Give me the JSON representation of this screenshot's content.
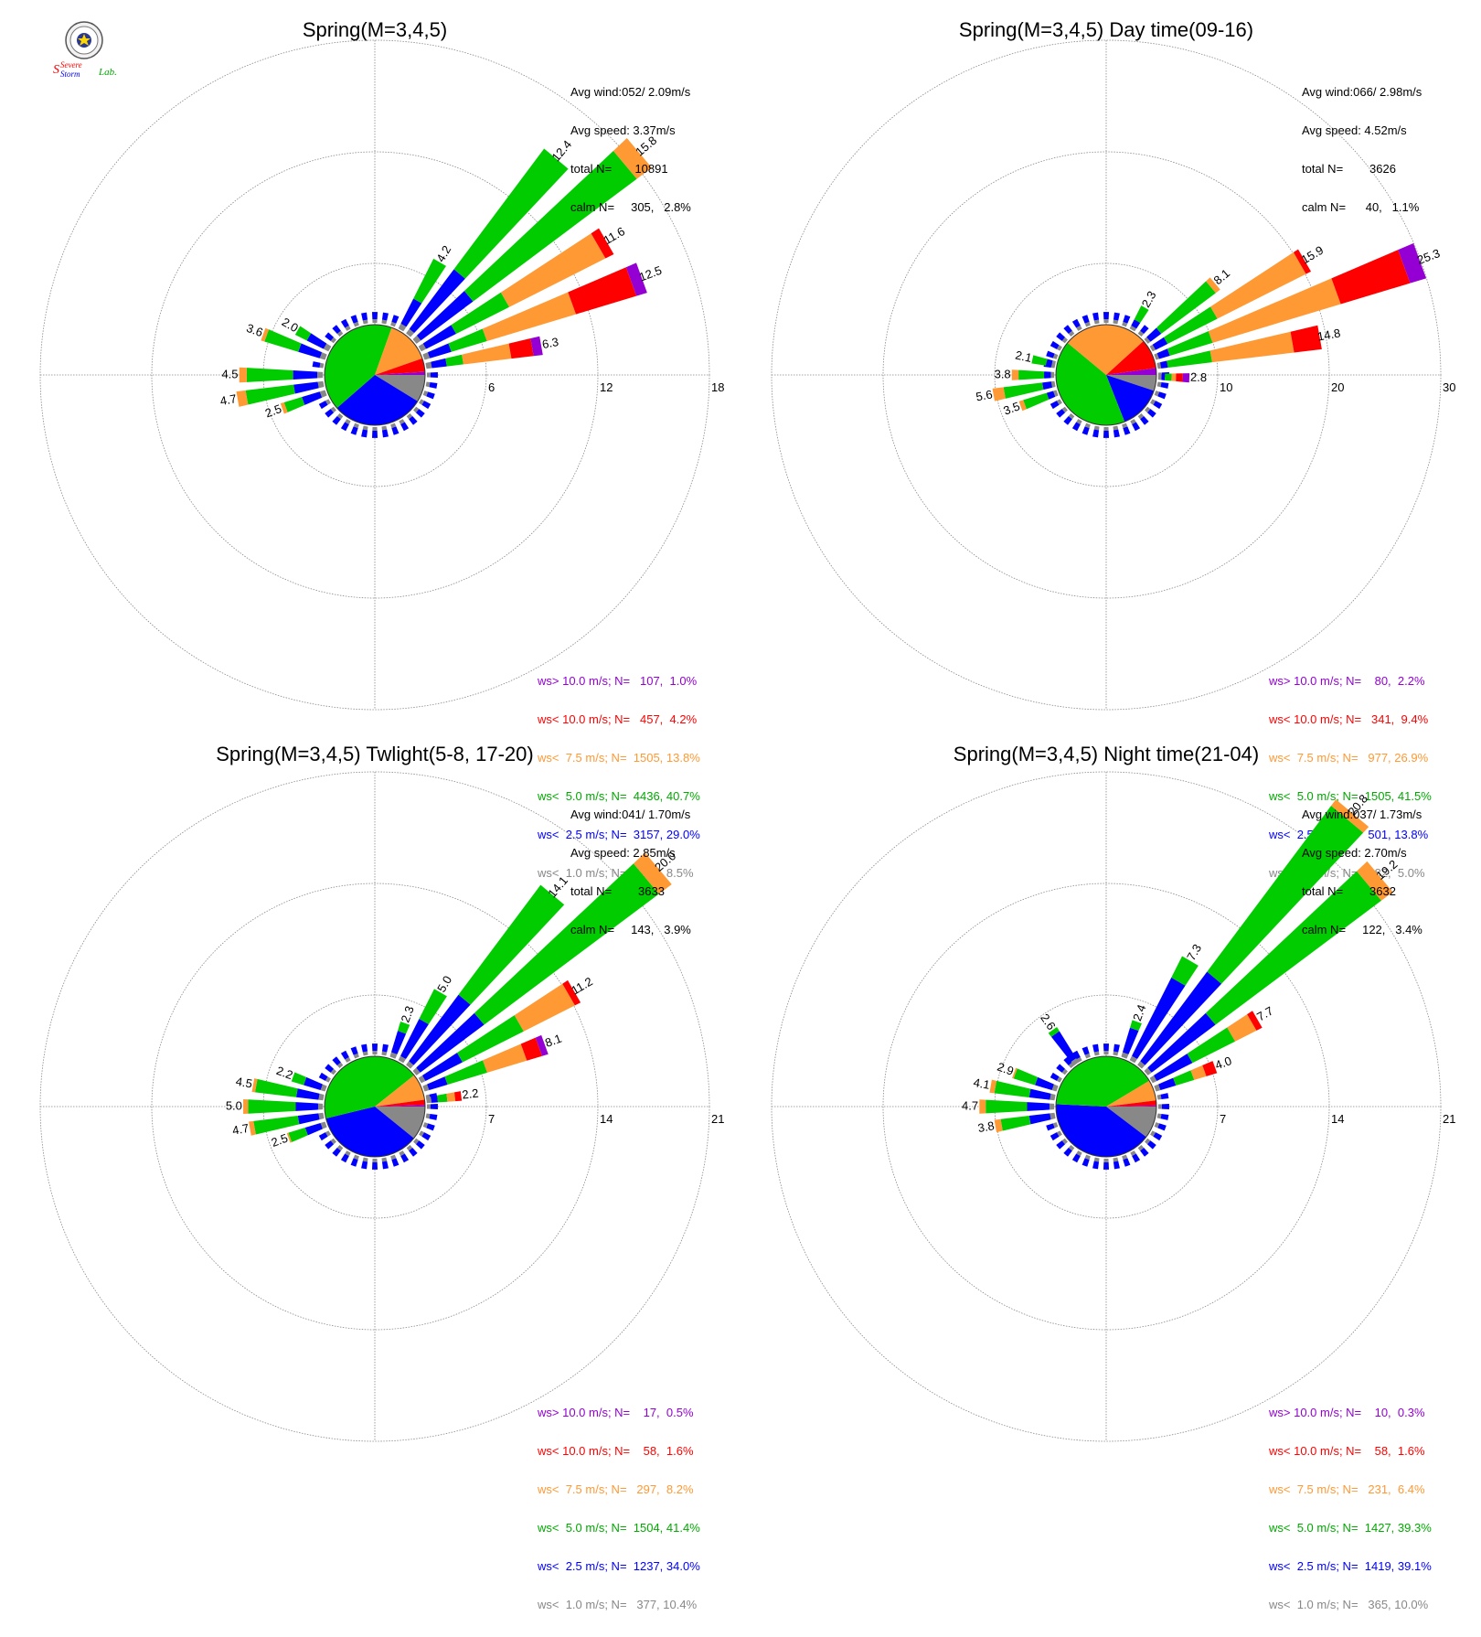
{
  "logo": {
    "text_a": "Severe",
    "text_b": "Storm",
    "text_c": "Lab."
  },
  "colors": {
    "gt10": "#9400d3",
    "lt10": "#ff0000",
    "lt7_5": "#ff9933",
    "lt5": "#00cc00",
    "lt2_5": "#0000ff",
    "lt1": "#888888"
  },
  "chart_data": [
    {
      "type": "windrose",
      "title": "Spring(M=3,4,5)",
      "rings": [
        6,
        12,
        18
      ],
      "stats": [
        "Avg wind:052/ 2.09m/s",
        "Avg speed: 3.37m/s",
        "total N=       10891",
        "calm N=     305,   2.8%"
      ],
      "legend": [
        {
          "label": "ws> 10.0 m/s; N=   107,  1.0%",
          "color": "gt10"
        },
        {
          "label": "ws< 10.0 m/s; N=   457,  4.2%",
          "color": "lt10"
        },
        {
          "label": "ws<  7.5 m/s; N=  1505, 13.8%",
          "color": "lt7_5"
        },
        {
          "label": "ws<  5.0 m/s; N=  4436, 40.7%",
          "color": "lt5"
        },
        {
          "label": "ws<  2.5 m/s; N=  3157, 29.0%",
          "color": "lt2_5"
        },
        {
          "label": "ws<  1.0 m/s; N=   924,  8.5%",
          "color": "lt1"
        }
      ],
      "pie": [
        8.5,
        29.0,
        40.7,
        13.8,
        4.2,
        1.0
      ],
      "bars": [
        {
          "dir": 30,
          "total": 4.2,
          "label": "4.2",
          "parts": [
            0.3,
            1.5,
            2.4,
            0,
            0,
            0
          ]
        },
        {
          "dir": 40,
          "total": 12.4,
          "label": "12.4",
          "parts": [
            0.3,
            4.0,
            8.1,
            0,
            0,
            0
          ]
        },
        {
          "dir": 50,
          "total": 15.8,
          "label": "15.8",
          "parts": [
            0.3,
            3.5,
            11.0,
            1.0,
            0,
            0
          ]
        },
        {
          "dir": 60,
          "total": 11.6,
          "label": "11.6",
          "parts": [
            0.3,
            1.8,
            3.2,
            5.8,
            0.5,
            0
          ]
        },
        {
          "dir": 70,
          "total": 12.5,
          "label": "12.5",
          "parts": [
            0.3,
            1.2,
            2.0,
            5.0,
            3.4,
            0.6
          ]
        },
        {
          "dir": 80,
          "total": 6.3,
          "label": "6.3",
          "parts": [
            0.3,
            0.8,
            0.9,
            2.6,
            1.2,
            0.5
          ]
        },
        {
          "dir": 250,
          "total": 2.5,
          "label": "2.5",
          "parts": [
            0.3,
            1.0,
            1.0,
            0.2,
            0,
            0
          ]
        },
        {
          "dir": 260,
          "total": 4.7,
          "label": "4.7",
          "parts": [
            0.3,
            1.3,
            2.6,
            0.5,
            0,
            0
          ]
        },
        {
          "dir": 270,
          "total": 4.5,
          "label": "4.5",
          "parts": [
            0.3,
            1.3,
            2.5,
            0.4,
            0,
            0
          ]
        },
        {
          "dir": 290,
          "total": 3.6,
          "label": "3.6",
          "parts": [
            0.3,
            1.2,
            1.9,
            0.2,
            0,
            0
          ]
        },
        {
          "dir": 300,
          "total": 2.0,
          "label": "2.0",
          "parts": [
            0.3,
            1.0,
            0.7,
            0,
            0,
            0
          ]
        }
      ]
    },
    {
      "type": "windrose",
      "title": "Spring(M=3,4,5) Day time(09-16)",
      "rings": [
        10,
        20,
        30
      ],
      "stats": [
        "Avg wind:066/ 2.98m/s",
        "Avg speed: 4.52m/s",
        "total N=        3626",
        "calm N=      40,   1.1%"
      ],
      "legend": [
        {
          "label": "ws> 10.0 m/s; N=    80,  2.2%",
          "color": "gt10"
        },
        {
          "label": "ws< 10.0 m/s; N=   341,  9.4%",
          "color": "lt10"
        },
        {
          "label": "ws<  7.5 m/s; N=   977, 26.9%",
          "color": "lt7_5"
        },
        {
          "label": "ws<  5.0 m/s; N=  1505, 41.5%",
          "color": "lt5"
        },
        {
          "label": "ws<  2.5 m/s; N=   501, 13.8%",
          "color": "lt2_5"
        },
        {
          "label": "ws<  1.0 m/s; N=   182,  5.0%",
          "color": "lt1"
        }
      ],
      "pie": [
        5.0,
        13.8,
        41.5,
        26.9,
        9.4,
        2.2
      ],
      "bars": [
        {
          "dir": 30,
          "total": 2.3,
          "label": "2.3",
          "parts": [
            0.3,
            0.6,
            1.4,
            0,
            0,
            0
          ]
        },
        {
          "dir": 50,
          "total": 8.1,
          "label": "8.1",
          "parts": [
            0.3,
            1.2,
            6.1,
            0.5,
            0,
            0
          ]
        },
        {
          "dir": 60,
          "total": 15.9,
          "label": "15.9",
          "parts": [
            0.3,
            1.2,
            5.0,
            8.9,
            0.5,
            0
          ]
        },
        {
          "dir": 70,
          "total": 25.3,
          "label": "25.3",
          "parts": [
            0.3,
            1.0,
            4.0,
            12.0,
            6.5,
            1.5
          ]
        },
        {
          "dir": 80,
          "total": 14.8,
          "label": "14.8",
          "parts": [
            0.3,
            0.6,
            4.0,
            7.4,
            2.5,
            0
          ]
        },
        {
          "dir": 92,
          "total": 2.8,
          "label": "2.8",
          "parts": [
            0.3,
            0.3,
            0.6,
            0.4,
            0.6,
            0.6
          ]
        },
        {
          "dir": 250,
          "total": 3.5,
          "label": "3.5",
          "parts": [
            0.3,
            0.6,
            2.2,
            0.4,
            0,
            0
          ]
        },
        {
          "dir": 260,
          "total": 5.6,
          "label": "5.6",
          "parts": [
            0.3,
            0.8,
            3.5,
            1.0,
            0,
            0
          ]
        },
        {
          "dir": 270,
          "total": 3.8,
          "label": "3.8",
          "parts": [
            0.3,
            0.6,
            2.3,
            0.6,
            0,
            0
          ]
        },
        {
          "dir": 282,
          "total": 2.1,
          "label": "2.1",
          "parts": [
            0.3,
            0.5,
            1.3,
            0,
            0,
            0
          ]
        }
      ]
    },
    {
      "type": "windrose",
      "title": "Spring(M=3,4,5) Twlight(5-8, 17-20)",
      "rings": [
        7,
        14,
        21
      ],
      "stats": [
        "Avg wind:041/ 1.70m/s",
        "Avg speed: 2.85m/s",
        "total N=        3633",
        "calm N=     143,   3.9%"
      ],
      "legend": [
        {
          "label": "ws> 10.0 m/s; N=    17,  0.5%",
          "color": "gt10"
        },
        {
          "label": "ws< 10.0 m/s; N=    58,  1.6%",
          "color": "lt10"
        },
        {
          "label": "ws<  7.5 m/s; N=   297,  8.2%",
          "color": "lt7_5"
        },
        {
          "label": "ws<  5.0 m/s; N=  1504, 41.4%",
          "color": "lt5"
        },
        {
          "label": "ws<  2.5 m/s; N=  1237, 34.0%",
          "color": "lt2_5"
        },
        {
          "label": "ws<  1.0 m/s; N=   377, 10.4%",
          "color": "lt1"
        }
      ],
      "pie": [
        10.4,
        34.0,
        41.4,
        8.2,
        1.6,
        0.5
      ],
      "bars": [
        {
          "dir": 20,
          "total": 2.3,
          "label": "2.3",
          "parts": [
            0.3,
            1.4,
            0.6,
            0,
            0,
            0
          ]
        },
        {
          "dir": 30,
          "total": 5.0,
          "label": "5.0",
          "parts": [
            0.3,
            2.6,
            2.1,
            0,
            0,
            0
          ]
        },
        {
          "dir": 40,
          "total": 14.1,
          "label": "14.1",
          "parts": [
            0.3,
            5.2,
            8.6,
            0,
            0,
            0
          ]
        },
        {
          "dir": 50,
          "total": 20.0,
          "label": "20.0",
          "parts": [
            0.3,
            5.0,
            13.7,
            1.0,
            0,
            0
          ]
        },
        {
          "dir": 60,
          "total": 11.2,
          "label": "11.2",
          "parts": [
            0.3,
            2.6,
            4.3,
            3.6,
            0.4,
            0
          ]
        },
        {
          "dir": 70,
          "total": 8.1,
          "label": "8.1",
          "parts": [
            0.3,
            1.2,
            2.6,
            2.6,
            1.0,
            0.4
          ]
        },
        {
          "dir": 83,
          "total": 2.2,
          "label": "2.2",
          "parts": [
            0.3,
            0.4,
            0.6,
            0.5,
            0.4,
            0
          ]
        },
        {
          "dir": 250,
          "total": 2.5,
          "label": "2.5",
          "parts": [
            0.3,
            1.0,
            1.1,
            0.1,
            0,
            0
          ]
        },
        {
          "dir": 260,
          "total": 4.7,
          "label": "4.7",
          "parts": [
            0.3,
            1.3,
            2.8,
            0.3,
            0,
            0
          ]
        },
        {
          "dir": 270,
          "total": 5.0,
          "label": "5.0",
          "parts": [
            0.3,
            1.4,
            3.0,
            0.3,
            0,
            0
          ]
        },
        {
          "dir": 280,
          "total": 4.5,
          "label": "4.5",
          "parts": [
            0.3,
            1.4,
            2.6,
            0.2,
            0,
            0
          ]
        },
        {
          "dir": 290,
          "total": 2.2,
          "label": "2.2",
          "parts": [
            0.3,
            1.1,
            0.8,
            0,
            0,
            0
          ]
        }
      ]
    },
    {
      "type": "windrose",
      "title": "Spring(M=3,4,5) Night time(21-04)",
      "rings": [
        7,
        14,
        21
      ],
      "stats": [
        "Avg wind:037/ 1.73m/s",
        "Avg speed: 2.70m/s",
        "total N=        3632",
        "calm N=     122,   3.4%"
      ],
      "legend": [
        {
          "label": "ws> 10.0 m/s; N=    10,  0.3%",
          "color": "gt10"
        },
        {
          "label": "ws< 10.0 m/s; N=    58,  1.6%",
          "color": "lt10"
        },
        {
          "label": "ws<  7.5 m/s; N=   231,  6.4%",
          "color": "lt7_5"
        },
        {
          "label": "ws<  5.0 m/s; N=  1427, 39.3%",
          "color": "lt5"
        },
        {
          "label": "ws<  2.5 m/s; N=  1419, 39.1%",
          "color": "lt2_5"
        },
        {
          "label": "ws<  1.0 m/s; N=   365, 10.0%",
          "color": "lt1"
        }
      ],
      "pie": [
        10.0,
        39.1,
        39.3,
        6.4,
        1.6,
        0.3
      ],
      "bars": [
        {
          "dir": 20,
          "total": 2.4,
          "label": "2.4",
          "parts": [
            0.3,
            1.6,
            0.5,
            0,
            0,
            0
          ]
        },
        {
          "dir": 30,
          "total": 7.3,
          "label": "7.3",
          "parts": [
            0.3,
            5.5,
            1.5,
            0,
            0,
            0
          ]
        },
        {
          "dir": 40,
          "total": 20.8,
          "label": "20.8",
          "parts": [
            0.3,
            7.0,
            13.0,
            0.5,
            0,
            0
          ]
        },
        {
          "dir": 50,
          "total": 19.2,
          "label": "19.2",
          "parts": [
            0.3,
            5.0,
            13.0,
            0.9,
            0,
            0
          ]
        },
        {
          "dir": 60,
          "total": 7.7,
          "label": "7.7",
          "parts": [
            0.3,
            2.5,
            3.0,
            1.5,
            0.4,
            0
          ]
        },
        {
          "dir": 70,
          "total": 4.0,
          "label": "4.0",
          "parts": [
            0.3,
            1.0,
            1.2,
            0.8,
            0.7,
            0
          ]
        },
        {
          "dir": 260,
          "total": 3.8,
          "label": "3.8",
          "parts": [
            0.3,
            1.3,
            1.8,
            0.4,
            0,
            0
          ]
        },
        {
          "dir": 270,
          "total": 4.7,
          "label": "4.7",
          "parts": [
            0.3,
            1.4,
            2.6,
            0.4,
            0,
            0
          ]
        },
        {
          "dir": 280,
          "total": 4.1,
          "label": "4.1",
          "parts": [
            0.3,
            1.3,
            2.2,
            0.3,
            0,
            0
          ]
        },
        {
          "dir": 290,
          "total": 2.9,
          "label": "2.9",
          "parts": [
            0.3,
            1.1,
            1.4,
            0.1,
            0,
            0
          ]
        },
        {
          "dir": 325,
          "total": 2.6,
          "label": "2.6",
          "parts": [
            0.3,
            2.0,
            0.3,
            0,
            0,
            0
          ]
        }
      ]
    }
  ]
}
